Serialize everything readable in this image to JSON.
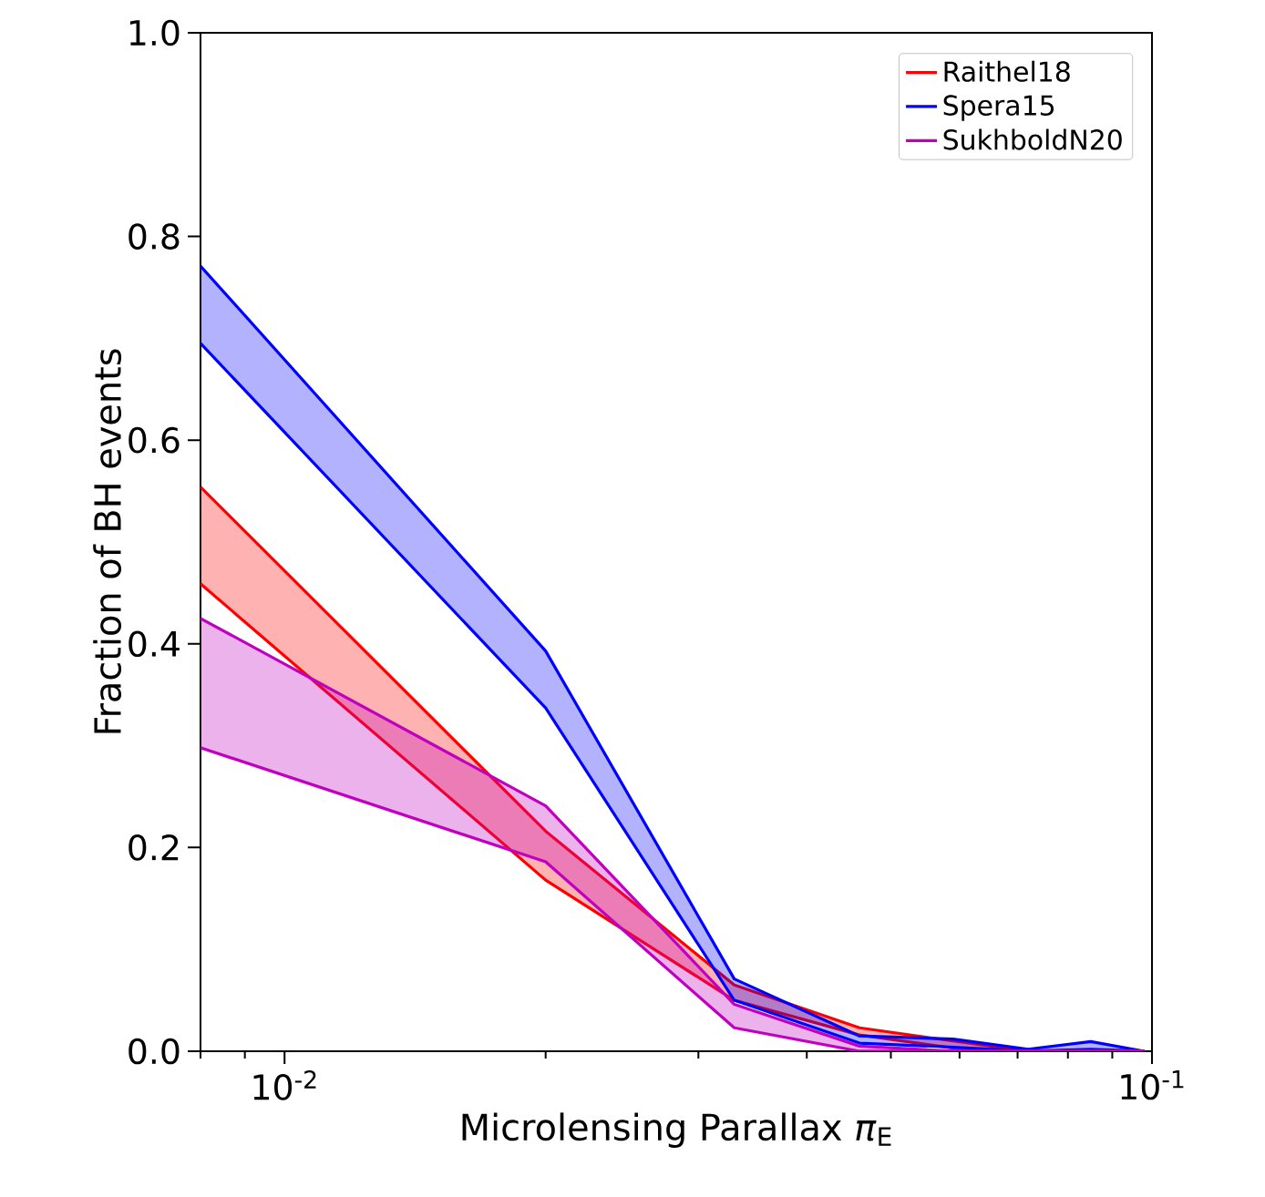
{
  "chart_data": {
    "type": "line",
    "xlabel": "Microlensing Parallax *π*$_{E}$",
    "ylabel": "Fraction of BH events",
    "log": "x",
    "xlim": [
      0.008,
      0.1
    ],
    "ylim": [
      0,
      1
    ],
    "xticks": [
      {
        "value": 0.008,
        "label": null
      },
      {
        "value": 0.009,
        "label": null
      },
      {
        "value": 0.01,
        "label": "10$^{-2}$"
      },
      {
        "value": 0.02,
        "label": null
      },
      {
        "value": 0.03,
        "label": null
      },
      {
        "value": 0.04,
        "label": null
      },
      {
        "value": 0.05,
        "label": null
      },
      {
        "value": 0.06,
        "label": null
      },
      {
        "value": 0.07,
        "label": null
      },
      {
        "value": 0.08,
        "label": null
      },
      {
        "value": 0.09,
        "label": null
      },
      {
        "value": 0.1,
        "label": "10$^{-1}$"
      }
    ],
    "yticks": [
      {
        "value": 0,
        "label": "0.0"
      },
      0.2,
      0.4,
      0.6,
      0.8,
      {
        "value": 1,
        "label": "1.0"
      }
    ],
    "x": [
      0.008,
      0.02,
      0.033,
      0.046,
      0.059,
      0.072,
      0.085,
      0.098
    ],
    "legend": "top right",
    "grid": false,
    "series": [
      {
        "name": "Raithel18",
        "color": "#ff0000",
        "values": [
          0.554,
          0.216,
          0.065,
          0.023,
          0.01,
          0,
          null,
          null
        ],
        "lower": [
          0.459,
          0.168,
          0.05,
          0.016,
          0.003,
          0,
          null,
          null
        ],
        "upper": [
          0.554,
          0.216,
          0.065,
          0.023,
          0.01,
          0,
          null,
          null
        ]
      },
      {
        "color": "#ff0000",
        "values": [
          0.459,
          0.168,
          0.05,
          0.016,
          0.003,
          0,
          null,
          null
        ]
      },
      {
        "name": "Spera15",
        "color": "#0000ff",
        "values": [
          0.771,
          0.393,
          0.071,
          0.015,
          0.012,
          0.002,
          0.0095,
          0
        ],
        "lower": [
          0.695,
          0.337,
          0.05,
          0.008,
          0.004,
          0,
          0.002,
          0
        ],
        "upper": [
          0.771,
          0.393,
          0.071,
          0.015,
          0.012,
          0.002,
          0.0095,
          0
        ]
      },
      {
        "color": "#0000ff",
        "values": [
          0.695,
          0.337,
          0.05,
          0.008,
          0.004,
          0,
          0.002,
          0
        ]
      },
      {
        "name": "SukhboldN20",
        "color": "#bf00bf",
        "values": [
          0.425,
          0.241,
          0.046,
          0.005,
          0,
          0,
          0,
          0
        ],
        "lower": [
          0.298,
          0.186,
          0.023,
          0,
          0,
          0,
          0,
          0
        ],
        "upper": [
          0.425,
          0.241,
          0.046,
          0.005,
          0,
          0,
          0,
          0
        ]
      },
      {
        "color": "#bf00bf",
        "values": [
          0.298,
          0.186,
          0.023,
          0,
          0,
          0,
          0,
          0
        ]
      }
    ]
  }
}
